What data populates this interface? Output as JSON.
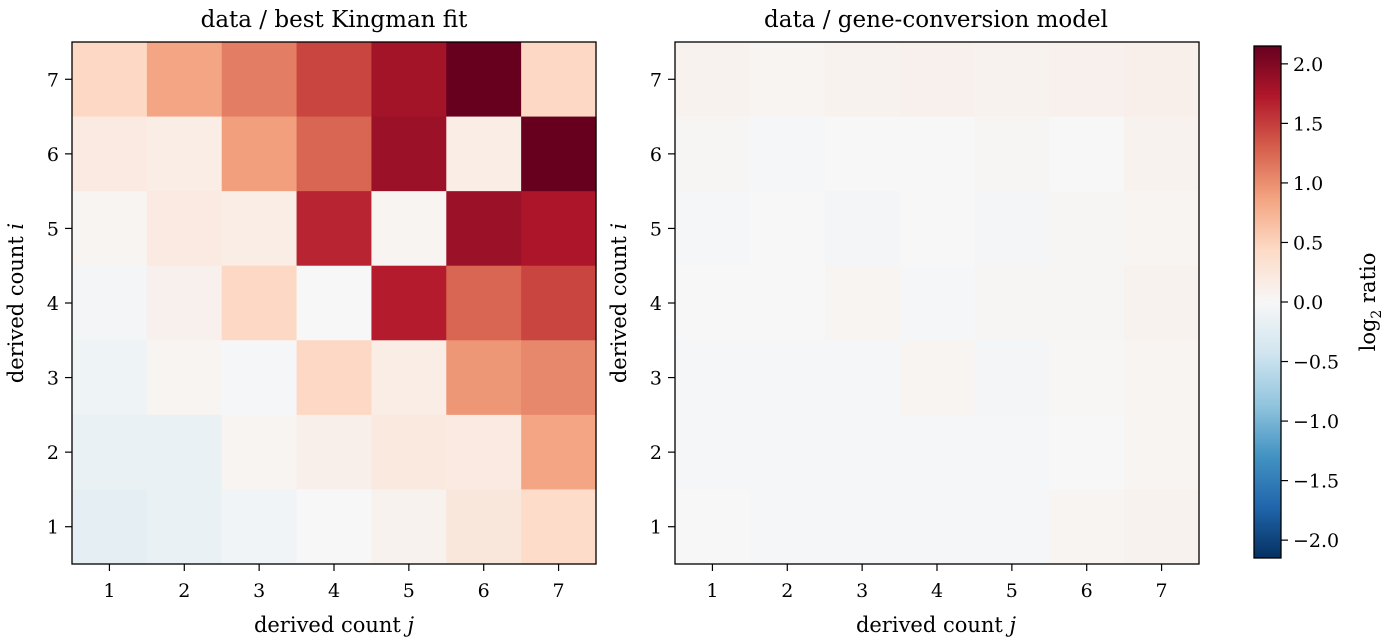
{
  "chart_data": [
    {
      "type": "heatmap",
      "title": "data / best Kingman fit",
      "xlabel": "derived count j",
      "ylabel": "derived count i",
      "x_ticks": [
        "1",
        "2",
        "3",
        "4",
        "5",
        "6",
        "7"
      ],
      "y_ticks": [
        "1",
        "2",
        "3",
        "4",
        "5",
        "6",
        "7"
      ],
      "row_order": "top-to-bottom i = 7..1",
      "values": [
        [
          0.45,
          0.85,
          1.1,
          1.45,
          1.8,
          2.15,
          0.45
        ],
        [
          0.2,
          0.15,
          0.9,
          1.25,
          1.85,
          0.15,
          2.15
        ],
        [
          0.05,
          0.2,
          0.15,
          1.65,
          0.05,
          1.85,
          1.75
        ],
        [
          -0.05,
          0.1,
          0.45,
          0.0,
          1.7,
          1.25,
          1.45
        ],
        [
          -0.1,
          0.05,
          -0.02,
          0.45,
          0.15,
          0.95,
          1.05
        ],
        [
          -0.15,
          -0.15,
          0.05,
          0.12,
          0.22,
          0.2,
          0.85
        ],
        [
          -0.22,
          -0.15,
          -0.08,
          0.0,
          0.08,
          0.25,
          0.4
        ]
      ]
    },
    {
      "type": "heatmap",
      "title": "data / gene-conversion model",
      "xlabel": "derived count j",
      "ylabel": "derived count i",
      "x_ticks": [
        "1",
        "2",
        "3",
        "4",
        "5",
        "6",
        "7"
      ],
      "y_ticks": [
        "1",
        "2",
        "3",
        "4",
        "5",
        "6",
        "7"
      ],
      "row_order": "top-to-bottom i = 7..1",
      "values": [
        [
          0.08,
          0.05,
          0.08,
          0.1,
          0.08,
          0.1,
          0.12
        ],
        [
          0.03,
          -0.02,
          0.0,
          0.0,
          0.03,
          0.0,
          0.08
        ],
        [
          -0.03,
          0.0,
          -0.05,
          0.0,
          -0.05,
          0.03,
          0.05
        ],
        [
          0.0,
          0.0,
          0.05,
          -0.02,
          0.03,
          0.03,
          0.08
        ],
        [
          -0.03,
          -0.02,
          -0.02,
          0.05,
          -0.04,
          0.02,
          0.05
        ],
        [
          -0.02,
          -0.02,
          -0.02,
          -0.02,
          -0.02,
          0.0,
          0.05
        ],
        [
          0.0,
          -0.02,
          -0.02,
          -0.02,
          -0.02,
          0.05,
          0.08
        ]
      ]
    }
  ],
  "colorbar": {
    "label_prefix": "log",
    "label_sub": "2",
    "label_suffix": " ratio",
    "range": [
      -2.15,
      2.15
    ],
    "ticks": [
      2.0,
      1.5,
      1.0,
      0.5,
      0.0,
      -0.5,
      -1.0,
      -1.5,
      -2.0
    ],
    "tick_labels": [
      "2.0",
      "1.5",
      "1.0",
      "0.5",
      "0.0",
      "−0.5",
      "−1.0",
      "−1.5",
      "−2.0"
    ],
    "colormap": "RdBu_r",
    "colormap_stops": [
      "#053061",
      "#2166ac",
      "#4393c3",
      "#92c5de",
      "#d1e5f0",
      "#f7f7f7",
      "#fddbc7",
      "#f4a582",
      "#d6604d",
      "#b2182b",
      "#67001f"
    ]
  }
}
